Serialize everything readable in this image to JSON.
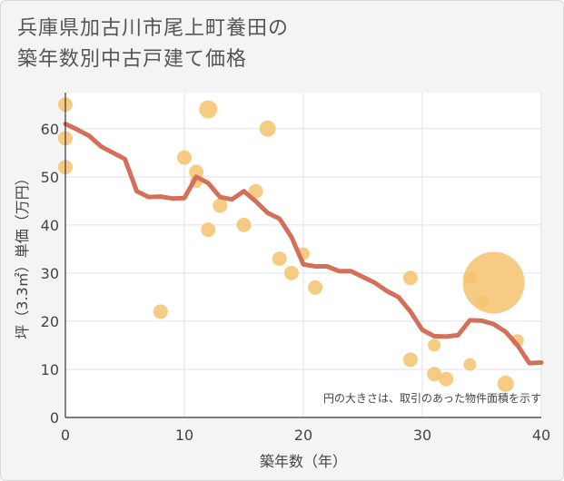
{
  "title_lines": [
    "兵庫県加古川市尾上町養田の",
    "築年数別中古戸建て価格"
  ],
  "chart_data": {
    "type": "scatter",
    "title": "兵庫県加古川市尾上町養田の築年数別中古戸建て価格",
    "xlabel": "築年数（年）",
    "ylabel": "坪（3.3㎡）単価（万円）",
    "xlim": [
      0,
      40
    ],
    "ylim": [
      0,
      70
    ],
    "xticks": [
      0,
      10,
      20,
      30,
      40
    ],
    "yticks": [
      0,
      10,
      20,
      30,
      40,
      50,
      60
    ],
    "grid": true,
    "note": "円の大きさは、取引のあった物件面積を示す",
    "colors": {
      "points": "#f5c36e",
      "line": "#d4705a"
    },
    "points": [
      {
        "x": 0,
        "y": 65,
        "r": 8
      },
      {
        "x": 0,
        "y": 58,
        "r": 8
      },
      {
        "x": 0,
        "y": 52,
        "r": 8
      },
      {
        "x": 8,
        "y": 22,
        "r": 8
      },
      {
        "x": 10,
        "y": 54,
        "r": 8
      },
      {
        "x": 11,
        "y": 51,
        "r": 8
      },
      {
        "x": 11,
        "y": 49,
        "r": 7
      },
      {
        "x": 12,
        "y": 64,
        "r": 10
      },
      {
        "x": 12,
        "y": 39,
        "r": 8
      },
      {
        "x": 13,
        "y": 44,
        "r": 8
      },
      {
        "x": 15,
        "y": 40,
        "r": 8
      },
      {
        "x": 16,
        "y": 47,
        "r": 8
      },
      {
        "x": 17,
        "y": 60,
        "r": 9
      },
      {
        "x": 18,
        "y": 33,
        "r": 8
      },
      {
        "x": 19,
        "y": 30,
        "r": 8
      },
      {
        "x": 20,
        "y": 34,
        "r": 7
      },
      {
        "x": 21,
        "y": 27,
        "r": 8
      },
      {
        "x": 29,
        "y": 29,
        "r": 8
      },
      {
        "x": 29,
        "y": 12,
        "r": 8
      },
      {
        "x": 31,
        "y": 15,
        "r": 7
      },
      {
        "x": 31,
        "y": 9,
        "r": 8
      },
      {
        "x": 32,
        "y": 8,
        "r": 8
      },
      {
        "x": 34,
        "y": 29,
        "r": 7
      },
      {
        "x": 34,
        "y": 11,
        "r": 7
      },
      {
        "x": 35,
        "y": 24,
        "r": 7
      },
      {
        "x": 36,
        "y": 28,
        "r": 34
      },
      {
        "x": 37,
        "y": 7,
        "r": 9
      },
      {
        "x": 38,
        "y": 16,
        "r": 7
      }
    ],
    "trend": {
      "x": [
        0,
        1,
        2,
        3,
        4,
        5,
        6,
        7,
        8,
        9,
        10,
        11,
        12,
        13,
        14,
        15,
        16,
        17,
        18,
        19,
        20,
        21,
        22,
        23,
        24,
        25,
        26,
        27,
        28,
        29,
        30,
        31,
        32,
        33,
        34,
        35,
        36,
        37,
        38,
        39,
        40
      ],
      "y": [
        61,
        59.8,
        58.5,
        56.3,
        55,
        53.7,
        47,
        45.8,
        45.9,
        45.5,
        45.6,
        50,
        48.7,
        45.8,
        45.3,
        47,
        44.9,
        42.5,
        41.3,
        37.5,
        31.8,
        31.4,
        31.4,
        30.4,
        30.4,
        29.2,
        28,
        26.3,
        25,
        22,
        18.2,
        16.9,
        16.8,
        17.1,
        20.2,
        20.1,
        19.4,
        17.8,
        15,
        11.3,
        11.4
      ]
    }
  }
}
